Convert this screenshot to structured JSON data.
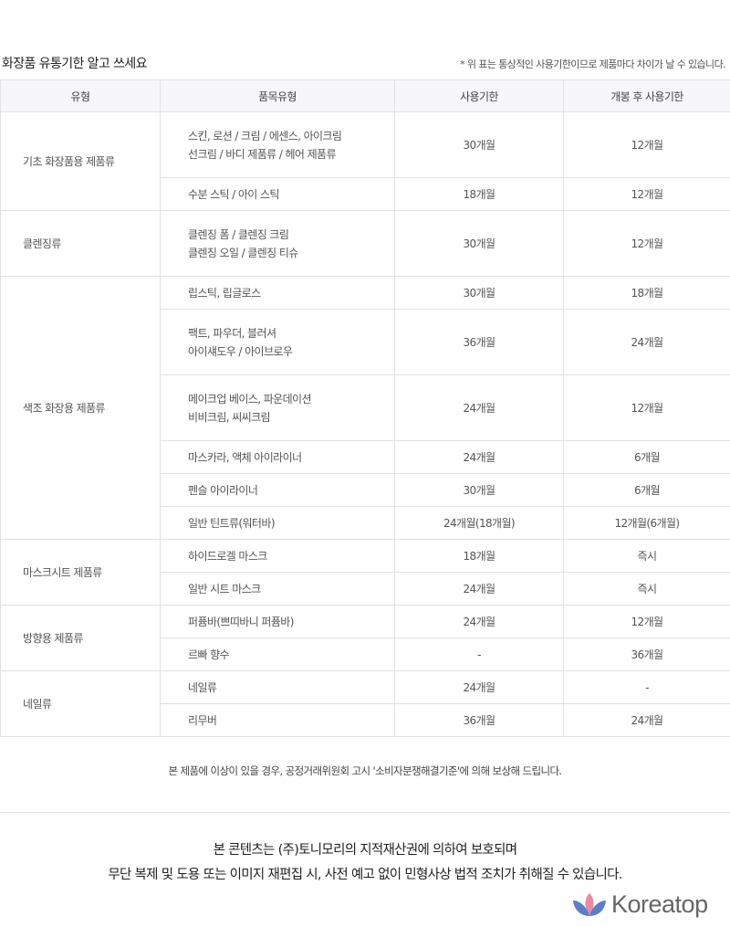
{
  "title": "화장품 유통기한 알고 쓰세요",
  "note": "* 위 표는 통상적인 사용기한이므로 제품마다 차이가 날 수 있습니다.",
  "headers": [
    "유형",
    "품목유형",
    "사용기한",
    "개봉 후 사용기한"
  ],
  "groups": [
    {
      "category": "기초 화장품용 제품류",
      "rows": [
        {
          "item": [
            "스킨, 로션 / 크림 / 에센스, 아이크림",
            "선크림 / 바디 제품류 / 헤어 제품류"
          ],
          "shelf": "30개월",
          "opened": "12개월"
        },
        {
          "item": [
            "수분 스틱 / 아이 스틱"
          ],
          "shelf": "18개월",
          "opened": "12개월"
        }
      ]
    },
    {
      "category": "클렌징류",
      "rows": [
        {
          "item": [
            "클렌징 폼 / 클렌징 크림",
            "클렌징 오일 / 클렌징 티슈"
          ],
          "shelf": "30개월",
          "opened": "12개월"
        }
      ]
    },
    {
      "category": "색조 화장용 제품류",
      "rows": [
        {
          "item": [
            "립스틱, 립글로스"
          ],
          "shelf": "30개월",
          "opened": "18개월"
        },
        {
          "item": [
            "팩트, 파우더, 블러셔",
            "아이섀도우 / 아이브로우"
          ],
          "shelf": "36개월",
          "opened": "24개월"
        },
        {
          "item": [
            "메이크업 베이스, 파운데이션",
            "비비크림, 씨씨크림"
          ],
          "shelf": "24개월",
          "opened": "12개월"
        },
        {
          "item": [
            "마스카라, 액체 아이라이너"
          ],
          "shelf": "24개월",
          "opened": "6개월"
        },
        {
          "item": [
            "펜슬 아이라이너"
          ],
          "shelf": "30개월",
          "opened": "6개월"
        },
        {
          "item": [
            "일반 틴트류(워터바)"
          ],
          "shelf": "24개월(18개월)",
          "opened": "12개월(6개월)"
        }
      ]
    },
    {
      "category": "마스크시트 제품류",
      "rows": [
        {
          "item": [
            "하이드로겔 마스크"
          ],
          "shelf": "18개월",
          "opened": "즉시"
        },
        {
          "item": [
            "일반 시트 마스크"
          ],
          "shelf": "24개월",
          "opened": "즉시"
        }
      ]
    },
    {
      "category": "방향용 제품류",
      "rows": [
        {
          "item": [
            "퍼퓸바(쁘띠바니 퍼퓸바)"
          ],
          "shelf": "24개월",
          "opened": "12개월"
        },
        {
          "item": [
            "르빠 향수"
          ],
          "shelf": "-",
          "opened": "36개월"
        }
      ]
    },
    {
      "category": "네일류",
      "rows": [
        {
          "item": [
            "네일류"
          ],
          "shelf": "24개월",
          "opened": "-"
        },
        {
          "item": [
            "리무버"
          ],
          "shelf": "36개월",
          "opened": "24개월"
        }
      ]
    }
  ],
  "compensation": "본 제품에 이상이 있을 경우, 공정거래위원회 고시 '소비자분쟁해결기준'에 의해 보상해 드립니다.",
  "copyright": [
    "본 콘텐츠는 (주)토니모리의 지적재산권에 의하여 보호되며",
    "무단 복제 및 도용 또는 이미지 재편집 시, 사전 예고 없이 민형사상 법적 조치가 취해질 수 있습니다."
  ],
  "logo": {
    "text": "Koreatop",
    "colors": [
      "#5b7fc4",
      "#e98aa0"
    ]
  }
}
